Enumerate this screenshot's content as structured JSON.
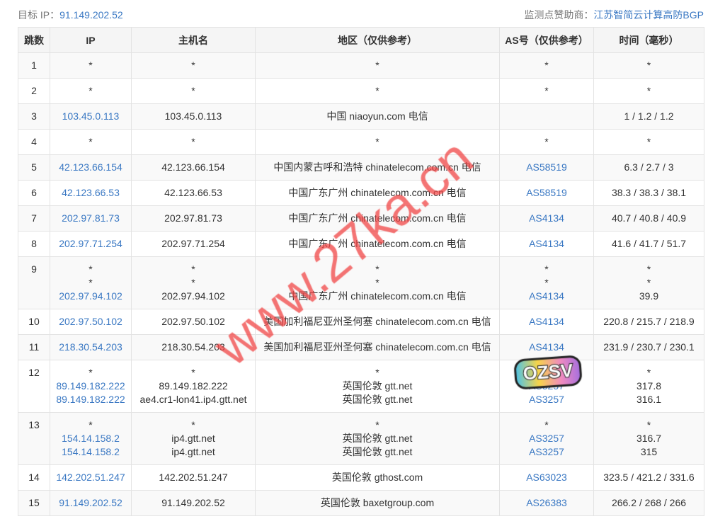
{
  "header": {
    "target_label": "目标 IP：",
    "target_ip": "91.149.202.52",
    "sponsor_label": "监测点赞助商：",
    "sponsor": "江苏智简云计算高防BGP"
  },
  "columns": [
    "跳数",
    "IP",
    "主机名",
    "地区（仅供参考）",
    "AS号（仅供参考）",
    "时间（毫秒）"
  ],
  "rows": [
    {
      "hop": "1",
      "ip": [
        "*"
      ],
      "host": [
        "*"
      ],
      "region": [
        "*"
      ],
      "as": [
        "*"
      ],
      "time": [
        "*"
      ]
    },
    {
      "hop": "2",
      "ip": [
        "*"
      ],
      "host": [
        "*"
      ],
      "region": [
        "*"
      ],
      "as": [
        "*"
      ],
      "time": [
        "*"
      ]
    },
    {
      "hop": "3",
      "ip": [
        "103.45.0.113"
      ],
      "host": [
        "103.45.0.113"
      ],
      "region": [
        "中国 niaoyun.com 电信"
      ],
      "as": [
        ""
      ],
      "time": [
        "1 / 1.2 / 1.2"
      ]
    },
    {
      "hop": "4",
      "ip": [
        "*"
      ],
      "host": [
        "*"
      ],
      "region": [
        "*"
      ],
      "as": [
        "*"
      ],
      "time": [
        "*"
      ]
    },
    {
      "hop": "5",
      "ip": [
        "42.123.66.154"
      ],
      "host": [
        "42.123.66.154"
      ],
      "region": [
        "中国内蒙古呼和浩特 chinatelecom.com.cn 电信"
      ],
      "as": [
        "AS58519"
      ],
      "time": [
        "6.3 / 2.7 / 3"
      ]
    },
    {
      "hop": "6",
      "ip": [
        "42.123.66.53"
      ],
      "host": [
        "42.123.66.53"
      ],
      "region": [
        "中国广东广州 chinatelecom.com.cn 电信"
      ],
      "as": [
        "AS58519"
      ],
      "time": [
        "38.3 / 38.3 / 38.1"
      ]
    },
    {
      "hop": "7",
      "ip": [
        "202.97.81.73"
      ],
      "host": [
        "202.97.81.73"
      ],
      "region": [
        "中国广东广州 chinatelecom.com.cn 电信"
      ],
      "as": [
        "AS4134"
      ],
      "time": [
        "40.7 / 40.8 / 40.9"
      ]
    },
    {
      "hop": "8",
      "ip": [
        "202.97.71.254"
      ],
      "host": [
        "202.97.71.254"
      ],
      "region": [
        "中国广东广州 chinatelecom.com.cn 电信"
      ],
      "as": [
        "AS4134"
      ],
      "time": [
        "41.6 / 41.7 / 51.7"
      ]
    },
    {
      "hop": "9",
      "ip": [
        "*",
        "*",
        "202.97.94.102"
      ],
      "host": [
        "*",
        "*",
        "202.97.94.102"
      ],
      "region": [
        "*",
        "*",
        "中国广东广州 chinatelecom.com.cn 电信"
      ],
      "as": [
        "*",
        "*",
        "AS4134"
      ],
      "time": [
        "*",
        "*",
        "39.9"
      ]
    },
    {
      "hop": "10",
      "ip": [
        "202.97.50.102"
      ],
      "host": [
        "202.97.50.102"
      ],
      "region": [
        "美国加利福尼亚州圣何塞 chinatelecom.com.cn 电信"
      ],
      "as": [
        "AS4134"
      ],
      "time": [
        "220.8 / 215.7 / 218.9"
      ]
    },
    {
      "hop": "11",
      "ip": [
        "218.30.54.203"
      ],
      "host": [
        "218.30.54.203"
      ],
      "region": [
        "美国加利福尼亚州圣何塞 chinatelecom.com.cn 电信"
      ],
      "as": [
        "AS4134"
      ],
      "time": [
        "231.9 / 230.7 / 230.1"
      ]
    },
    {
      "hop": "12",
      "ip": [
        "*",
        "89.149.182.222",
        "89.149.182.222"
      ],
      "host": [
        "*",
        "89.149.182.222",
        "ae4.cr1-lon41.ip4.gtt.net"
      ],
      "region": [
        "*",
        "英国伦敦 gtt.net",
        "英国伦敦 gtt.net"
      ],
      "as": [
        "*",
        "AS3257",
        "AS3257"
      ],
      "time": [
        "*",
        "317.8",
        "316.1"
      ]
    },
    {
      "hop": "13",
      "ip": [
        "*",
        "154.14.158.2",
        "154.14.158.2"
      ],
      "host": [
        "*",
        "ip4.gtt.net",
        "ip4.gtt.net"
      ],
      "region": [
        "*",
        "英国伦敦 gtt.net",
        "英国伦敦 gtt.net"
      ],
      "as": [
        "*",
        "AS3257",
        "AS3257"
      ],
      "time": [
        "*",
        "316.7",
        "315"
      ]
    },
    {
      "hop": "14",
      "ip": [
        "142.202.51.247"
      ],
      "host": [
        "142.202.51.247"
      ],
      "region": [
        "英国伦敦 gthost.com"
      ],
      "as": [
        "AS63023"
      ],
      "time": [
        "323.5 / 421.2 / 331.6"
      ]
    },
    {
      "hop": "15",
      "ip": [
        "91.149.202.52"
      ],
      "host": [
        "91.149.202.52"
      ],
      "region": [
        "英国伦敦 baxetgroup.com"
      ],
      "as": [
        "AS26383"
      ],
      "time": [
        "266.2 / 268 / 266"
      ]
    }
  ],
  "watermark": "www.27ka.cn",
  "sticker": "OZSV",
  "colors": {
    "link": "#3a78c3",
    "watermark": "#f04646",
    "row_alt": "#f9f9f9"
  }
}
